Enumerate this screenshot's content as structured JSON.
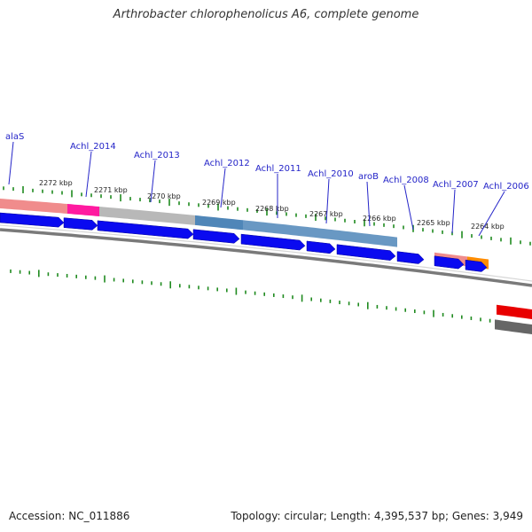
{
  "title": "Arthrobacter chlorophenolicus A6, complete genome",
  "footer": {
    "accession": "Accession: NC_011886",
    "summary": "Topology: circular; Length: 4,395,537 bp; Genes: 3,949"
  },
  "colors": {
    "cds": "#0a0af0",
    "ruler_tick": "#1f8a1f",
    "label": "#2424c8",
    "backbone": "#7a7a7a",
    "trna": "#e80000",
    "steelblue": "#4f86b8",
    "magenta": "#ff1aa0",
    "salmon": "#f08c8c",
    "orange": "#ff8c00",
    "grey": "#b8b8b8"
  },
  "tick_labels": [
    "2272 kbp",
    "2271 kbp",
    "2270 kbp",
    "2269 kbp",
    "2268 kbp",
    "2267 kbp",
    "2266 kbp",
    "2265 kbp",
    "2264 kbp"
  ],
  "gene_labels": [
    "alaS",
    "Achl_2014",
    "Achl_2013",
    "Achl_2012",
    "Achl_2011",
    "Achl_2010",
    "aroB",
    "Achl_2008",
    "Achl_2007",
    "Achl_2006"
  ]
}
